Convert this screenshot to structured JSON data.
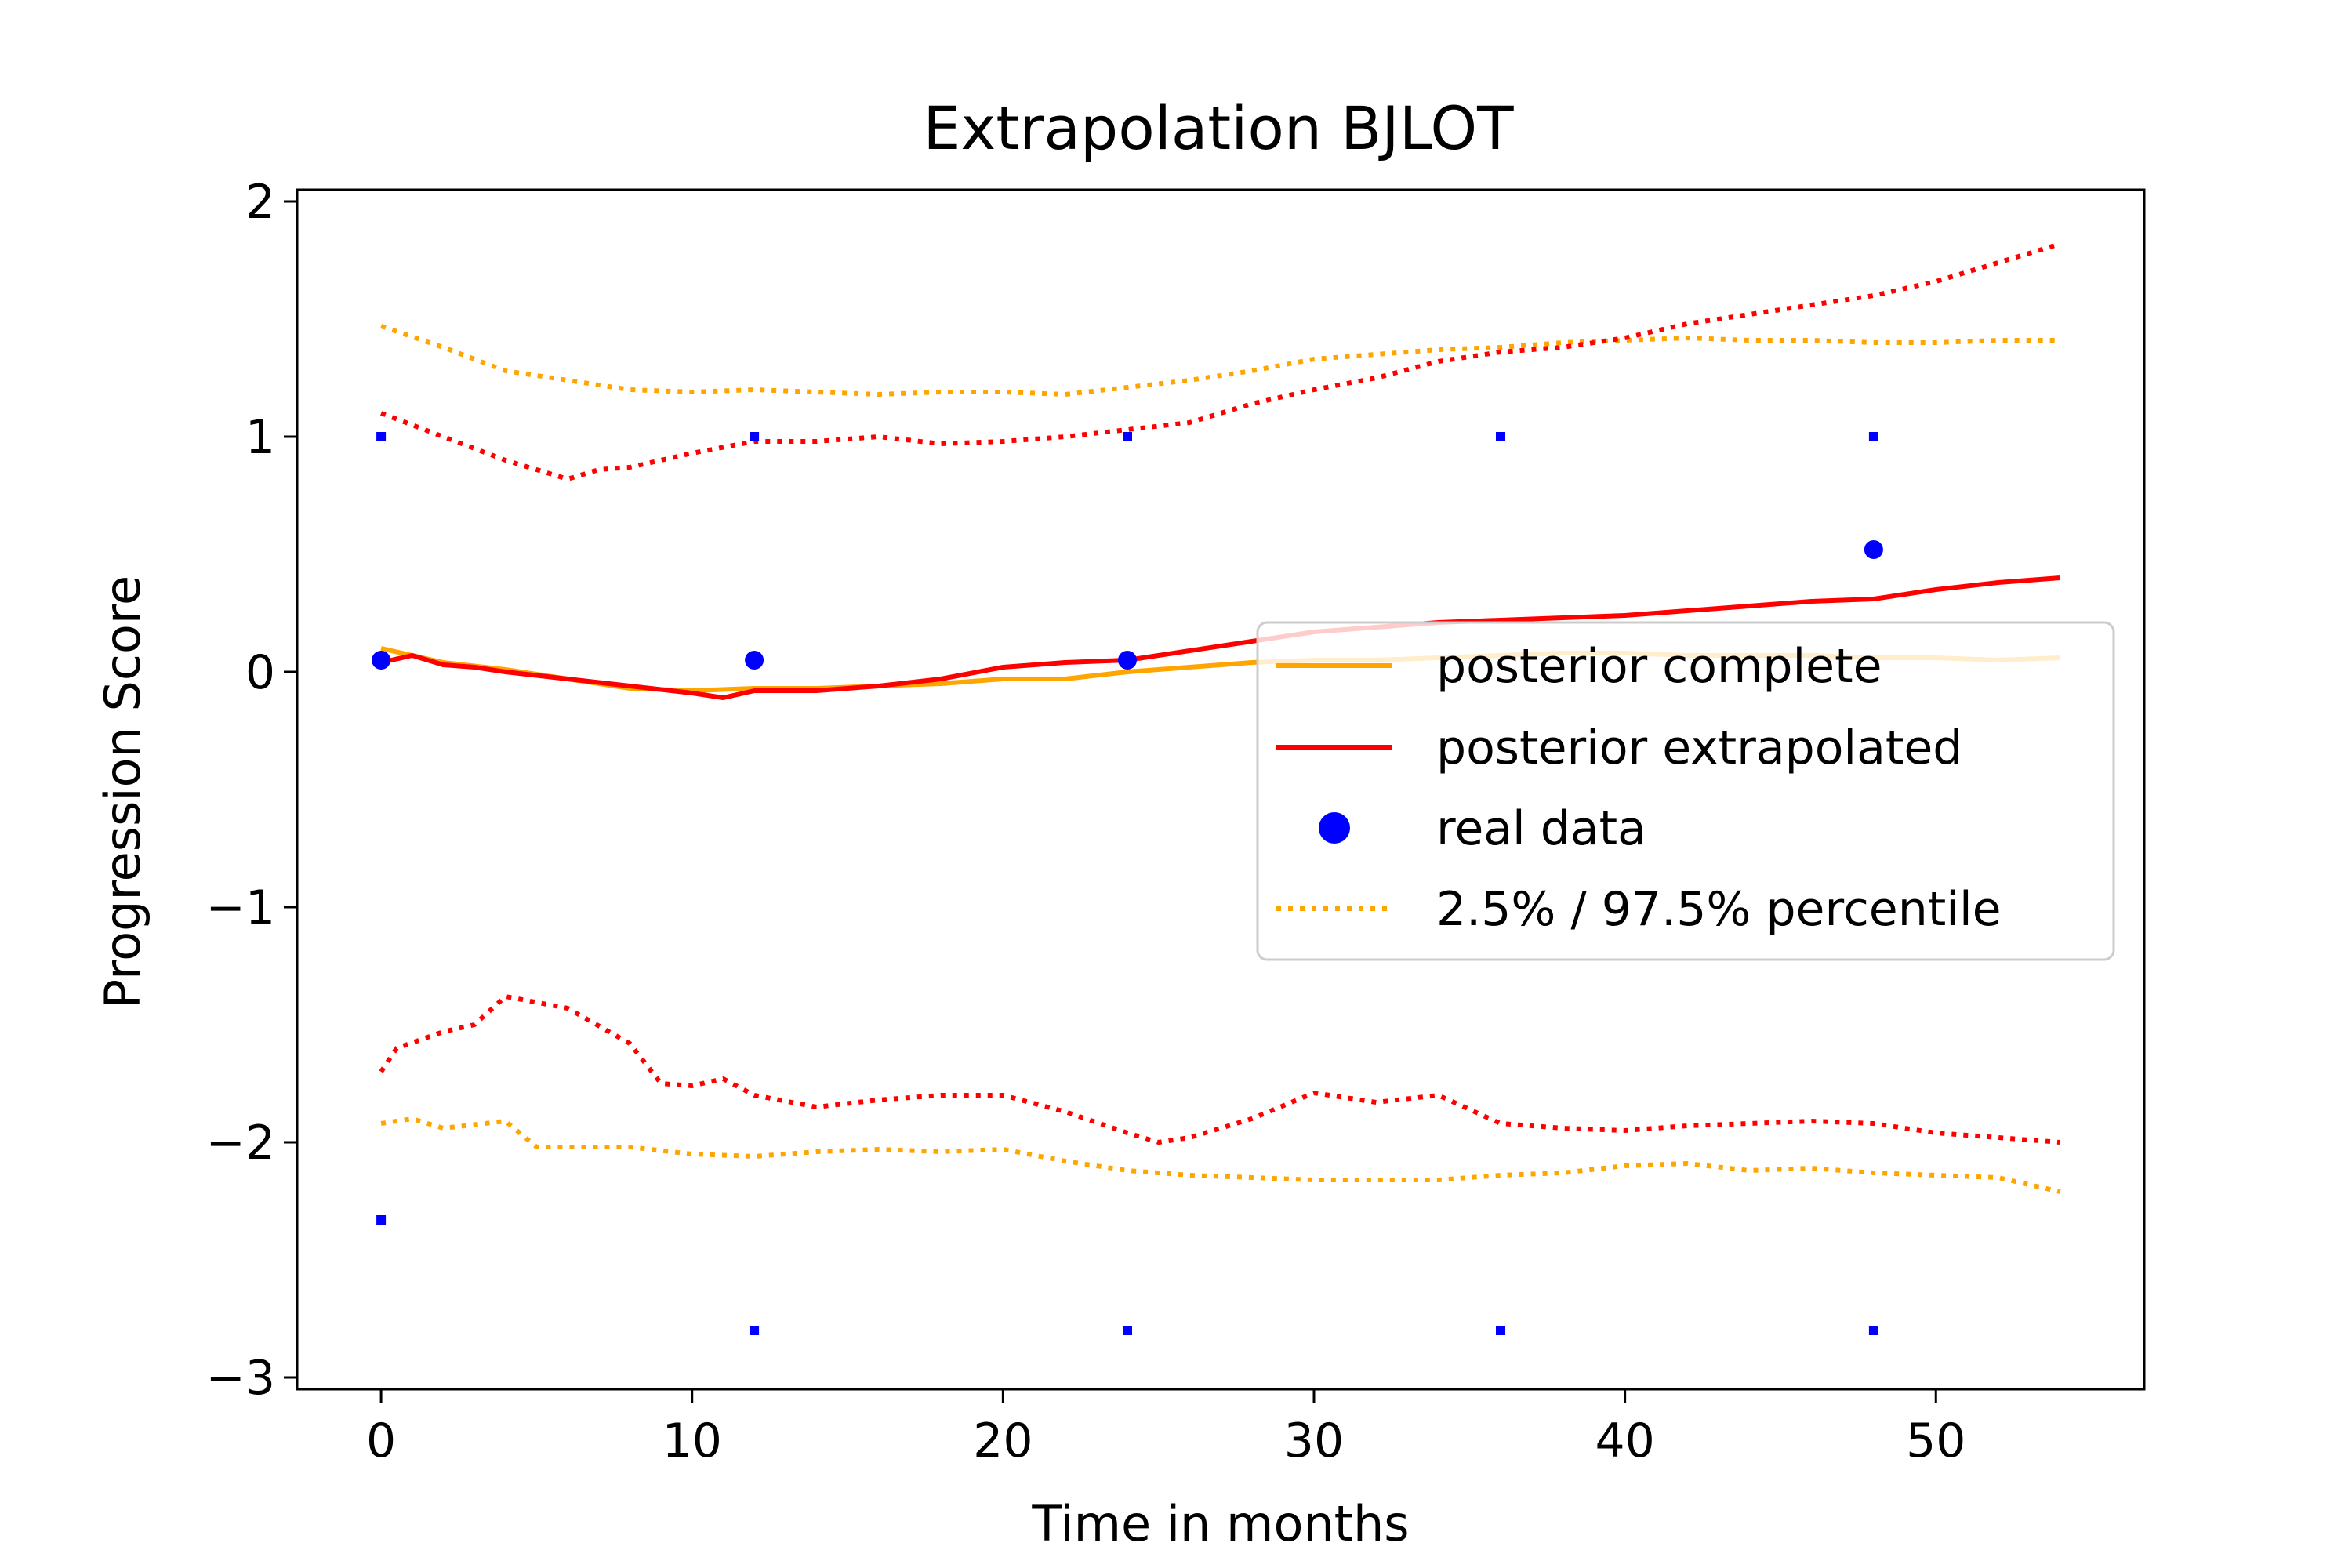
{
  "chart_data": {
    "type": "line",
    "title": "Extrapolation BJLOT",
    "xlabel": "Time in months",
    "ylabel": "Progression Score",
    "xlim": [
      -2.7,
      56.7
    ],
    "ylim": [
      -3.05,
      2.05
    ],
    "xticks": [
      0,
      10,
      20,
      30,
      40,
      50
    ],
    "yticks": [
      -3,
      -2,
      -1,
      0,
      1,
      2
    ],
    "ytick_labels": [
      "−3",
      "−2",
      "−1",
      "0",
      "1",
      "2"
    ],
    "grid": false,
    "legend_position": "center-right",
    "series": [
      {
        "name": "posterior complete",
        "style": "solid",
        "color": "#ffa500",
        "x": [
          0,
          2,
          4,
          6,
          8,
          10,
          12,
          14,
          16,
          18,
          20,
          22,
          24,
          26,
          28,
          30,
          32,
          34,
          36,
          38,
          40,
          42,
          44,
          46,
          48,
          50,
          52,
          54
        ],
        "y": [
          0.1,
          0.04,
          0.01,
          -0.03,
          -0.07,
          -0.08,
          -0.07,
          -0.07,
          -0.06,
          -0.05,
          -0.03,
          -0.03,
          0.0,
          0.02,
          0.04,
          0.05,
          0.05,
          0.06,
          0.07,
          0.08,
          0.08,
          0.07,
          0.07,
          0.07,
          0.06,
          0.06,
          0.05,
          0.06
        ]
      },
      {
        "name": "posterior extrapolated",
        "style": "solid",
        "color": "#ff0000",
        "x": [
          0,
          1,
          2,
          3,
          4,
          6,
          8,
          10,
          11,
          12,
          14,
          16,
          18,
          20,
          22,
          24,
          26,
          28,
          30,
          32,
          34,
          36,
          38,
          40,
          42,
          44,
          46,
          48,
          50,
          52,
          54
        ],
        "y": [
          0.04,
          0.07,
          0.03,
          0.02,
          0.0,
          -0.03,
          -0.06,
          -0.09,
          -0.11,
          -0.08,
          -0.08,
          -0.06,
          -0.03,
          0.02,
          0.04,
          0.05,
          0.09,
          0.13,
          0.17,
          0.19,
          0.21,
          0.22,
          0.23,
          0.24,
          0.26,
          0.28,
          0.3,
          0.31,
          0.35,
          0.38,
          0.4
        ]
      },
      {
        "name": "2.5% / 97.5% percentile",
        "style": "dotted",
        "color": "#ffa500",
        "x": [
          0,
          2,
          4,
          6,
          8,
          10,
          12,
          14,
          16,
          18,
          20,
          22,
          24,
          26,
          28,
          30,
          32,
          34,
          36,
          38,
          40,
          42,
          44,
          46,
          48,
          50,
          52,
          54
        ],
        "y": [
          1.47,
          1.38,
          1.28,
          1.24,
          1.2,
          1.19,
          1.2,
          1.19,
          1.18,
          1.19,
          1.19,
          1.18,
          1.21,
          1.24,
          1.28,
          1.33,
          1.35,
          1.37,
          1.38,
          1.4,
          1.41,
          1.42,
          1.41,
          1.41,
          1.4,
          1.4,
          1.41,
          1.41
        ]
      },
      {
        "name": "",
        "style": "dotted",
        "color": "#ffa500",
        "x": [
          0,
          1,
          2,
          4,
          5,
          8,
          10,
          12,
          14,
          16,
          18,
          20,
          22,
          24,
          26,
          28,
          30,
          32,
          34,
          36,
          38,
          40,
          42,
          44,
          46,
          48,
          50,
          52,
          54
        ],
        "y": [
          -1.92,
          -1.9,
          -1.94,
          -1.91,
          -2.02,
          -2.02,
          -2.05,
          -2.06,
          -2.04,
          -2.03,
          -2.04,
          -2.03,
          -2.08,
          -2.12,
          -2.14,
          -2.15,
          -2.16,
          -2.16,
          -2.16,
          -2.14,
          -2.13,
          -2.1,
          -2.09,
          -2.12,
          -2.11,
          -2.13,
          -2.14,
          -2.15,
          -2.21
        ]
      },
      {
        "name": "",
        "style": "dotted",
        "color": "#ff0000",
        "x": [
          0,
          2,
          4,
          6,
          7,
          8,
          10,
          12,
          14,
          16,
          18,
          20,
          22,
          24,
          26,
          28,
          30,
          32,
          34,
          36,
          38,
          40,
          42,
          44,
          46,
          48,
          50,
          52,
          54
        ],
        "y": [
          1.1,
          1.0,
          0.9,
          0.82,
          0.86,
          0.87,
          0.93,
          0.98,
          0.98,
          1.0,
          0.97,
          0.98,
          1.0,
          1.03,
          1.06,
          1.14,
          1.2,
          1.25,
          1.32,
          1.36,
          1.38,
          1.42,
          1.48,
          1.52,
          1.56,
          1.6,
          1.66,
          1.74,
          1.82
        ]
      },
      {
        "name": "",
        "style": "dotted",
        "color": "#ff0000",
        "x": [
          0,
          0.5,
          2,
          3,
          4,
          6,
          8,
          9,
          10,
          11,
          12,
          14,
          16,
          18,
          20,
          22,
          24,
          25,
          26,
          28,
          30,
          32,
          34,
          36,
          38,
          40,
          42,
          44,
          46,
          48,
          50,
          52,
          54
        ],
        "y": [
          -1.7,
          -1.6,
          -1.53,
          -1.5,
          -1.38,
          -1.43,
          -1.58,
          -1.75,
          -1.76,
          -1.73,
          -1.8,
          -1.85,
          -1.82,
          -1.8,
          -1.8,
          -1.87,
          -1.96,
          -2.0,
          -1.98,
          -1.9,
          -1.79,
          -1.83,
          -1.8,
          -1.92,
          -1.94,
          -1.95,
          -1.93,
          -1.92,
          -1.91,
          -1.92,
          -1.96,
          -1.98,
          -2.0
        ]
      }
    ],
    "real_data": {
      "name": "real data",
      "color": "#0000ff",
      "x": [
        0,
        12,
        24,
        48
      ],
      "y": [
        0.05,
        0.05,
        0.05,
        0.52
      ]
    },
    "markers": {
      "color": "#0000ff",
      "x": [
        0,
        0,
        12,
        12,
        24,
        24,
        36,
        36,
        48,
        48
      ],
      "y": [
        1.0,
        -2.33,
        1.0,
        -2.8,
        1.0,
        -2.8,
        1.0,
        -2.8,
        1.0,
        -2.8
      ]
    }
  }
}
